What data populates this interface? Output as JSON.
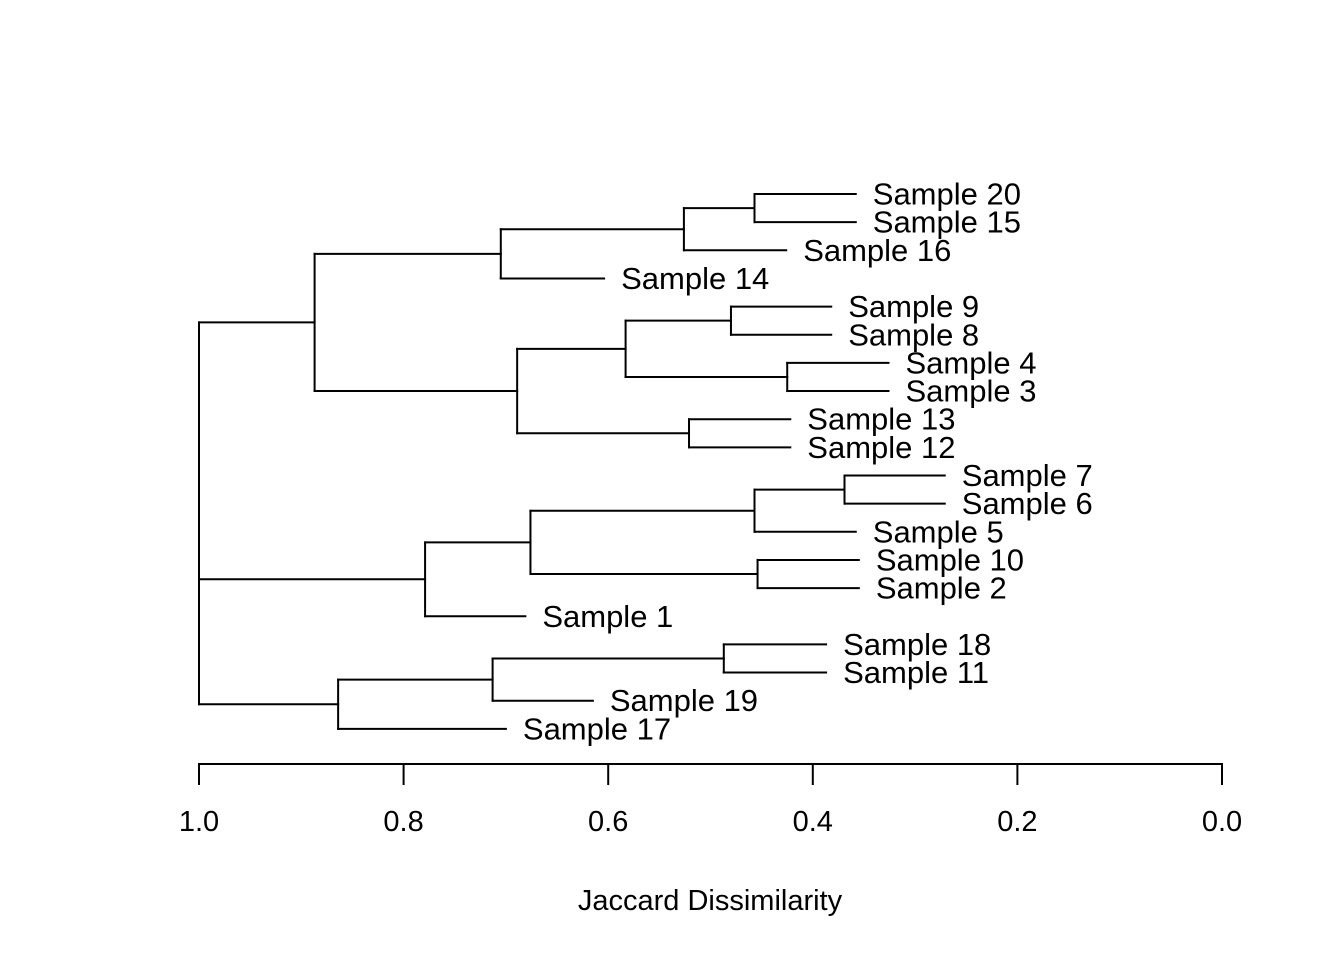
{
  "chart_data": {
    "type": "dendrogram",
    "orientation": "horizontal",
    "xlabel": "Jaccard Dissimilarity",
    "xlim": [
      1.0,
      0.0
    ],
    "ticks": [
      1.0,
      0.8,
      0.6,
      0.4,
      0.2,
      0.0
    ],
    "tick_labels": [
      "1.0",
      "0.8",
      "0.6",
      "0.4",
      "0.2",
      "0.0"
    ],
    "leaves": [
      {
        "name": "Sample 20",
        "stub_end": 0.358
      },
      {
        "name": "Sample 15",
        "stub_end": 0.358
      },
      {
        "name": "Sample 16",
        "stub_end": 0.426
      },
      {
        "name": "Sample 14",
        "stub_end": 0.604
      },
      {
        "name": "Sample 9",
        "stub_end": 0.382
      },
      {
        "name": "Sample 8",
        "stub_end": 0.382
      },
      {
        "name": "Sample 4",
        "stub_end": 0.326
      },
      {
        "name": "Sample 3",
        "stub_end": 0.326
      },
      {
        "name": "Sample 13",
        "stub_end": 0.422
      },
      {
        "name": "Sample 12",
        "stub_end": 0.422
      },
      {
        "name": "Sample 7",
        "stub_end": 0.271
      },
      {
        "name": "Sample 6",
        "stub_end": 0.271
      },
      {
        "name": "Sample 5",
        "stub_end": 0.358
      },
      {
        "name": "Sample 10",
        "stub_end": 0.355
      },
      {
        "name": "Sample 2",
        "stub_end": 0.355
      },
      {
        "name": "Sample 1",
        "stub_end": 0.681
      },
      {
        "name": "Sample 18",
        "stub_end": 0.387
      },
      {
        "name": "Sample 11",
        "stub_end": 0.387
      },
      {
        "name": "Sample 19",
        "stub_end": 0.615
      },
      {
        "name": "Sample 17",
        "stub_end": 0.7
      }
    ],
    "merges": [
      {
        "id": "A",
        "children": [
          "Sample 20",
          "Sample 15"
        ],
        "height": 0.457
      },
      {
        "id": "B",
        "children": [
          "A",
          "Sample 16"
        ],
        "height": 0.526
      },
      {
        "id": "C",
        "children": [
          "B",
          "Sample 14"
        ],
        "height": 0.705
      },
      {
        "id": "D",
        "children": [
          "Sample 9",
          "Sample 8"
        ],
        "height": 0.48
      },
      {
        "id": "E",
        "children": [
          "Sample 4",
          "Sample 3"
        ],
        "height": 0.425
      },
      {
        "id": "F",
        "children": [
          "D",
          "E"
        ],
        "height": 0.583
      },
      {
        "id": "G",
        "children": [
          "Sample 13",
          "Sample 12"
        ],
        "height": 0.521
      },
      {
        "id": "H",
        "children": [
          "F",
          "G"
        ],
        "height": 0.689
      },
      {
        "id": "I",
        "children": [
          "C",
          "H"
        ],
        "height": 0.887
      },
      {
        "id": "J",
        "children": [
          "Sample 7",
          "Sample 6"
        ],
        "height": 0.369
      },
      {
        "id": "K",
        "children": [
          "J",
          "Sample 5"
        ],
        "height": 0.457
      },
      {
        "id": "L",
        "children": [
          "Sample 10",
          "Sample 2"
        ],
        "height": 0.454
      },
      {
        "id": "M",
        "children": [
          "K",
          "L"
        ],
        "height": 0.676
      },
      {
        "id": "N",
        "children": [
          "M",
          "Sample 1"
        ],
        "height": 0.779
      },
      {
        "id": "O",
        "children": [
          "Sample 18",
          "Sample 11"
        ],
        "height": 0.487
      },
      {
        "id": "P",
        "children": [
          "O",
          "Sample 19"
        ],
        "height": 0.713
      },
      {
        "id": "Q",
        "children": [
          "P",
          "Sample 17"
        ],
        "height": 0.864
      },
      {
        "id": "R",
        "children": [
          "N",
          "Q"
        ],
        "height": 1.0
      },
      {
        "id": "S",
        "children": [
          "I",
          "R"
        ],
        "height": 1.0
      }
    ]
  }
}
